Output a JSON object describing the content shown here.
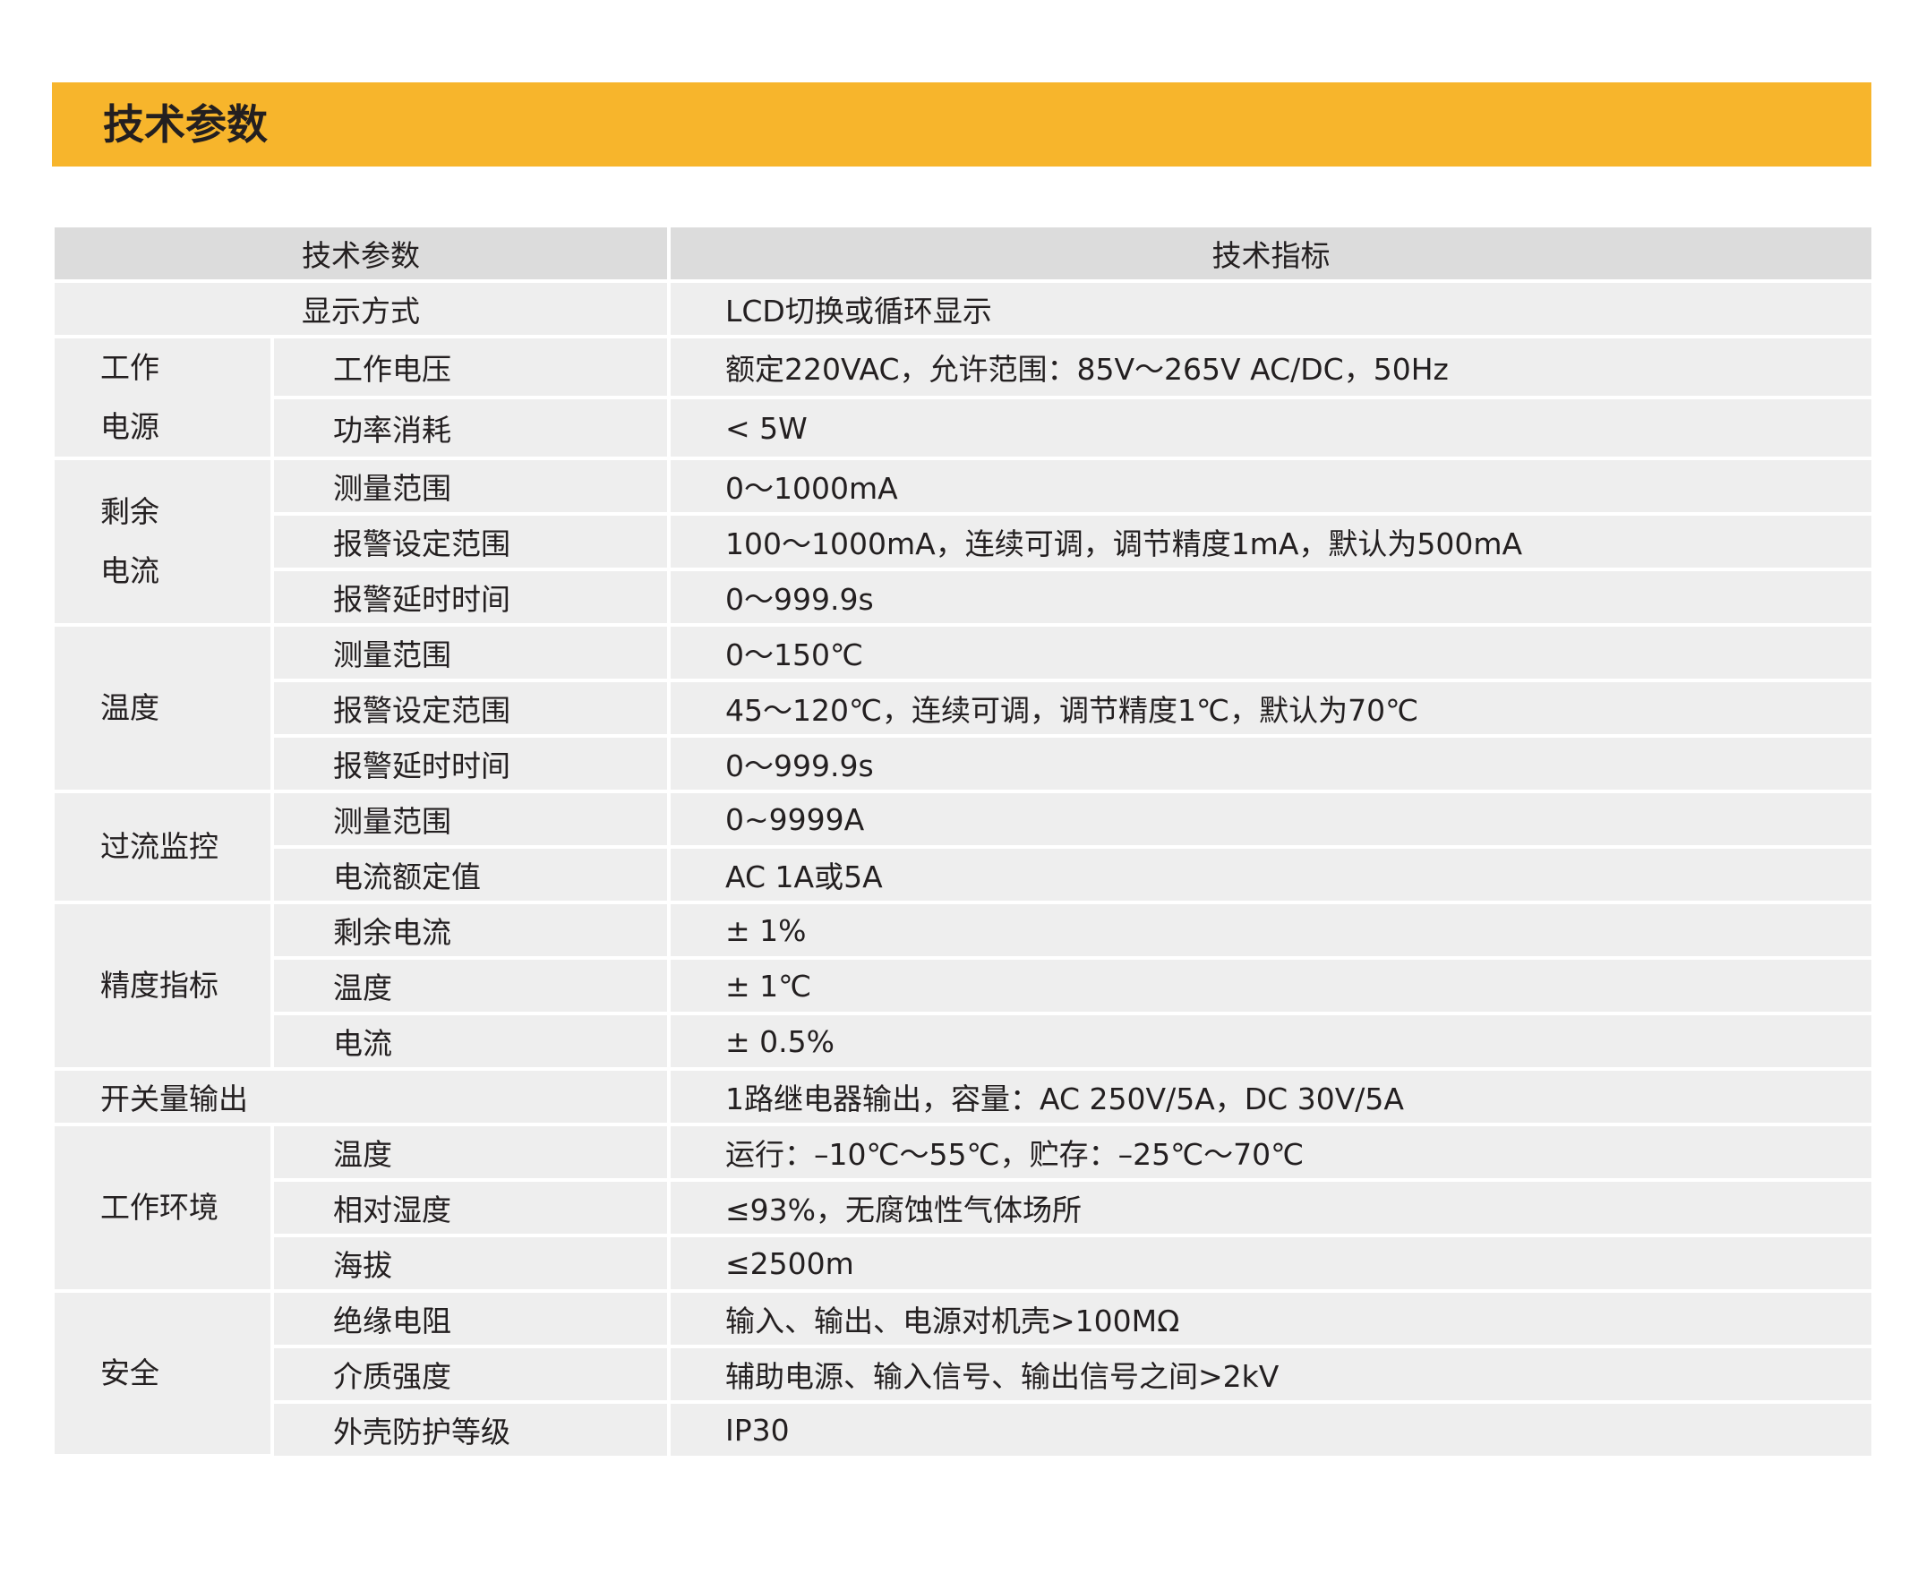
{
  "banner": {
    "title": "技术参数",
    "color": "#f7b52c"
  },
  "table": {
    "headers": [
      "技术参数",
      "技术指标"
    ],
    "display_mode": {
      "label": "显示方式",
      "value": "LCD切换或循环显示"
    },
    "power": {
      "group": [
        "工作",
        "电源"
      ],
      "rows": [
        {
          "label": "工作电压",
          "value": "额定220VAC，允许范围：85V～265V AC/DC，50Hz"
        },
        {
          "label": "功率消耗",
          "value": "< 5W"
        }
      ]
    },
    "residual": {
      "group": [
        "剩余",
        "电流"
      ],
      "rows": [
        {
          "label": "测量范围",
          "value": "0～1000mA"
        },
        {
          "label": "报警设定范围",
          "value": "100～1000mA，连续可调，调节精度1mA，默认为500mA"
        },
        {
          "label": "报警延时时间",
          "value": "0～999.9s"
        }
      ]
    },
    "temperature": {
      "group": "温度",
      "rows": [
        {
          "label": "测量范围",
          "value": "0～150℃"
        },
        {
          "label": "报警设定范围",
          "value": "45～120℃，连续可调，调节精度1℃，默认为70℃"
        },
        {
          "label": "报警延时时间",
          "value": "0～999.9s"
        }
      ]
    },
    "overcurrent": {
      "group": "过流监控",
      "rows": [
        {
          "label": "测量范围",
          "value": "0~9999A"
        },
        {
          "label": "电流额定值",
          "value": "AC 1A或5A"
        }
      ]
    },
    "accuracy": {
      "group": "精度指标",
      "rows": [
        {
          "label": "剩余电流",
          "value": "± 1%"
        },
        {
          "label": "温度",
          "value": "± 1℃"
        },
        {
          "label": "电流",
          "value": "± 0.5%"
        }
      ]
    },
    "switch_output": {
      "label": "开关量输出",
      "value": "1路继电器输出，容量：AC 250V/5A，DC 30V/5A"
    },
    "environment": {
      "group": "工作环境",
      "rows": [
        {
          "label": "温度",
          "value": "运行：–10℃～55℃，贮存：–25℃～70℃"
        },
        {
          "label": "相对湿度",
          "value": "≤93%，无腐蚀性气体场所"
        },
        {
          "label": "海拔",
          "value": "≤2500m"
        }
      ]
    },
    "safety": {
      "group": "安全",
      "rows": [
        {
          "label": "绝缘电阻",
          "value": "输入、输出、电源对机壳>100MΩ"
        },
        {
          "label": "介质强度",
          "value": "辅助电源、输入信号、输出信号之间>2kV"
        },
        {
          "label": "外壳防护等级",
          "value": "IP30"
        }
      ]
    }
  }
}
